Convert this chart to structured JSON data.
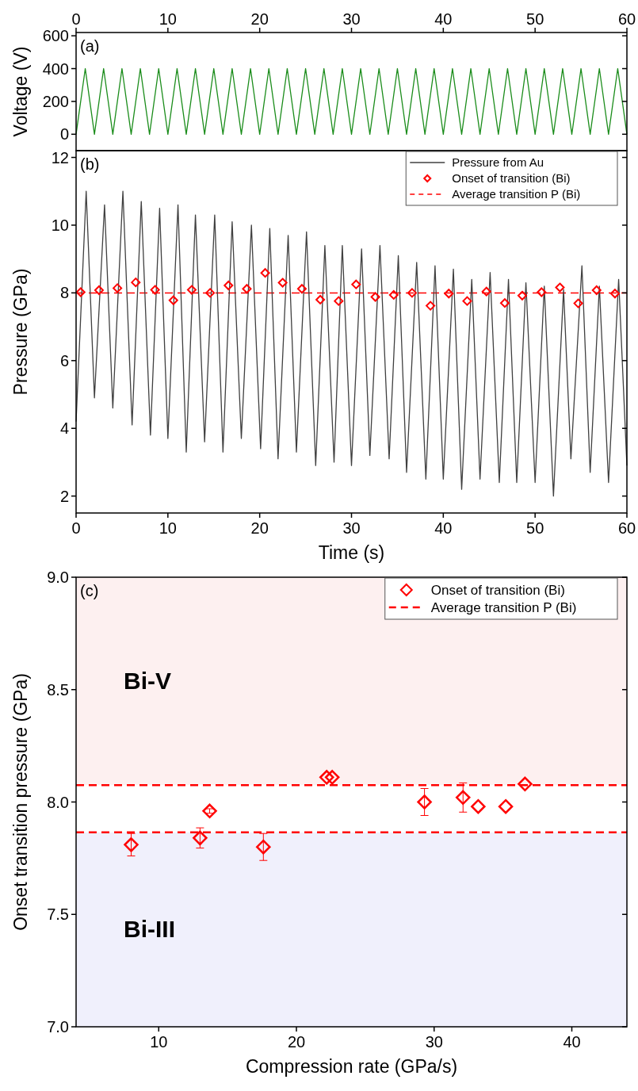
{
  "chart_data": [
    {
      "type": "line",
      "ylabel": "Voltage (V)",
      "xlim": [
        0,
        60
      ],
      "xticks": [
        0,
        10,
        20,
        30,
        40,
        50,
        60
      ],
      "ylim": [
        -100,
        620
      ],
      "yticks": [
        0,
        200,
        400,
        600
      ],
      "annotations": [
        "(a)"
      ],
      "series": [
        {
          "color": "#1a8c1a",
          "x": [
            0,
            1,
            2,
            3,
            4,
            5,
            6,
            7,
            8,
            9,
            10,
            11,
            12,
            13,
            14,
            15,
            16,
            17,
            18,
            19,
            20,
            21,
            22,
            23,
            24,
            25,
            26,
            27,
            28,
            29,
            30,
            31,
            32,
            33,
            34,
            35,
            36,
            37,
            38,
            39,
            40,
            41,
            42,
            43,
            44,
            45,
            46,
            47,
            48,
            49,
            50,
            51,
            52,
            53,
            54,
            55,
            56,
            57,
            58,
            59,
            60
          ],
          "values": [
            0,
            400,
            0,
            400,
            0,
            400,
            0,
            400,
            0,
            400,
            0,
            400,
            0,
            400,
            0,
            400,
            0,
            400,
            0,
            400,
            0,
            400,
            0,
            400,
            0,
            400,
            0,
            400,
            0,
            400,
            0,
            400,
            0,
            400,
            0,
            400,
            0,
            400,
            0,
            400,
            0,
            400,
            0,
            400,
            0,
            400,
            0,
            400,
            0,
            400,
            0,
            400,
            0,
            400,
            0,
            400,
            0,
            400,
            0,
            400,
            0
          ]
        }
      ]
    },
    {
      "type": "line",
      "xlabel": "Time (s)",
      "ylabel": "Pressure (GPa)",
      "xlim": [
        0,
        60
      ],
      "xticks": [
        0,
        10,
        20,
        30,
        40,
        50,
        60
      ],
      "ylim": [
        1.5,
        12.2
      ],
      "yticks": [
        2,
        4,
        6,
        8,
        10,
        12
      ],
      "legend": "top right",
      "annotations": [
        "(b)"
      ],
      "ref_lines": [
        {
          "axis": "y",
          "value": 8.0,
          "label": "Average transition P (Bi)",
          "color": "#ff0000",
          "line_style": "dashed"
        }
      ],
      "series": [
        {
          "name": "Pressure from Au",
          "color": "#404040",
          "x": [
            0,
            1.1,
            2.0,
            3.1,
            4.0,
            5.1,
            6.1,
            7.1,
            8.1,
            9.1,
            10.0,
            11.1,
            12.0,
            13.0,
            14.0,
            15.1,
            16.0,
            17.0,
            18.0,
            19.1,
            20.1,
            21.1,
            22.0,
            23.1,
            24.0,
            25.1,
            26.1,
            27.1,
            28.1,
            29.0,
            30.0,
            31.1,
            32.0,
            33.1,
            34.1,
            35.1,
            36.0,
            37.1,
            38.1,
            39.1,
            40.0,
            41.1,
            42.0,
            43.1,
            44.0,
            45.1,
            46.1,
            47.1,
            48.0,
            49.0,
            50.0,
            51.0,
            52.0,
            53.1,
            53.9,
            55.1,
            56.0,
            57.0,
            58.0,
            59.1,
            60
          ],
          "values": [
            4.2,
            11.0,
            4.9,
            10.6,
            4.6,
            11.0,
            4.1,
            10.7,
            3.8,
            10.5,
            3.7,
            10.6,
            3.3,
            10.3,
            3.6,
            10.3,
            3.3,
            10.1,
            3.7,
            10.0,
            3.4,
            9.9,
            3.1,
            9.7,
            3.3,
            9.8,
            2.9,
            9.4,
            3.0,
            9.4,
            2.9,
            9.3,
            3.2,
            9.4,
            3.1,
            9.1,
            2.7,
            8.9,
            2.5,
            8.8,
            2.5,
            8.7,
            2.2,
            8.4,
            2.5,
            8.6,
            2.4,
            8.4,
            2.4,
            8.3,
            2.4,
            8.2,
            2.0,
            8.1,
            3.1,
            8.8,
            2.7,
            8.2,
            2.4,
            8.4,
            2.9
          ]
        },
        {
          "type": "scatter",
          "name": "Onset of transition (Bi)",
          "color": "#ff0000",
          "marker": "diamond",
          "x": [
            0.5,
            2.5,
            4.5,
            6.5,
            8.6,
            10.6,
            12.6,
            14.6,
            16.6,
            18.6,
            20.6,
            22.5,
            24.6,
            26.6,
            28.6,
            30.5,
            32.6,
            34.6,
            36.6,
            38.6,
            40.6,
            42.6,
            44.7,
            46.7,
            48.6,
            50.7,
            52.7,
            54.7,
            56.7,
            58.7
          ],
          "values": [
            8.02,
            8.08,
            8.14,
            8.31,
            8.09,
            7.78,
            8.09,
            8.0,
            8.22,
            8.12,
            8.59,
            8.3,
            8.12,
            7.8,
            7.76,
            8.25,
            7.88,
            7.94,
            8.0,
            7.62,
            7.98,
            7.76,
            8.04,
            7.7,
            7.92,
            8.02,
            8.16,
            7.69,
            8.08,
            7.98
          ]
        }
      ]
    },
    {
      "type": "scatter",
      "xlabel": "Compression rate (GPa/s)",
      "ylabel": "Onset transition pressure (GPa)",
      "xlim": [
        4,
        44
      ],
      "xticks": [
        10,
        20,
        30,
        40
      ],
      "ylim": [
        7,
        9
      ],
      "yticks": [
        {
          "value": 7,
          "label": "7.0"
        },
        {
          "value": 7.5,
          "label": "7.5"
        },
        {
          "value": 8,
          "label": "8.0"
        },
        {
          "value": 8.5,
          "label": "8.5"
        },
        {
          "value": 9,
          "label": "9.0"
        }
      ],
      "legend": "top right",
      "annotations": [
        "(c)"
      ],
      "bands": [
        {
          "axis": "y",
          "from": 8.075,
          "to": 9,
          "label": "Bi-V",
          "color": "#fdf0f0"
        },
        {
          "axis": "y",
          "from": 7,
          "to": 7.865,
          "label": "Bi-III",
          "color": "#f0f0fc"
        }
      ],
      "ref_lines": [
        {
          "axis": "y",
          "value": 8.075,
          "label": "Average transition P (Bi)",
          "color": "#ff0000",
          "line_style": "dashed"
        },
        {
          "axis": "y",
          "value": 7.865,
          "color": "#ff0000",
          "line_style": "dashed"
        }
      ],
      "series": [
        {
          "name": "Onset of transition (Bi)",
          "color": "#ff0000",
          "marker": "diamond",
          "x": [
            8.0,
            13.0,
            13.7,
            17.6,
            22.2,
            22.6,
            29.3,
            32.1,
            33.2,
            35.2,
            36.6
          ],
          "values": [
            7.81,
            7.84,
            7.96,
            7.8,
            8.11,
            8.11,
            8.0,
            8.02,
            7.98,
            7.98,
            8.08
          ],
          "errors": [
            0.05,
            0.045,
            0.01,
            0.06,
            null,
            null,
            0.06,
            0.065,
            null,
            null,
            null
          ]
        }
      ]
    }
  ]
}
